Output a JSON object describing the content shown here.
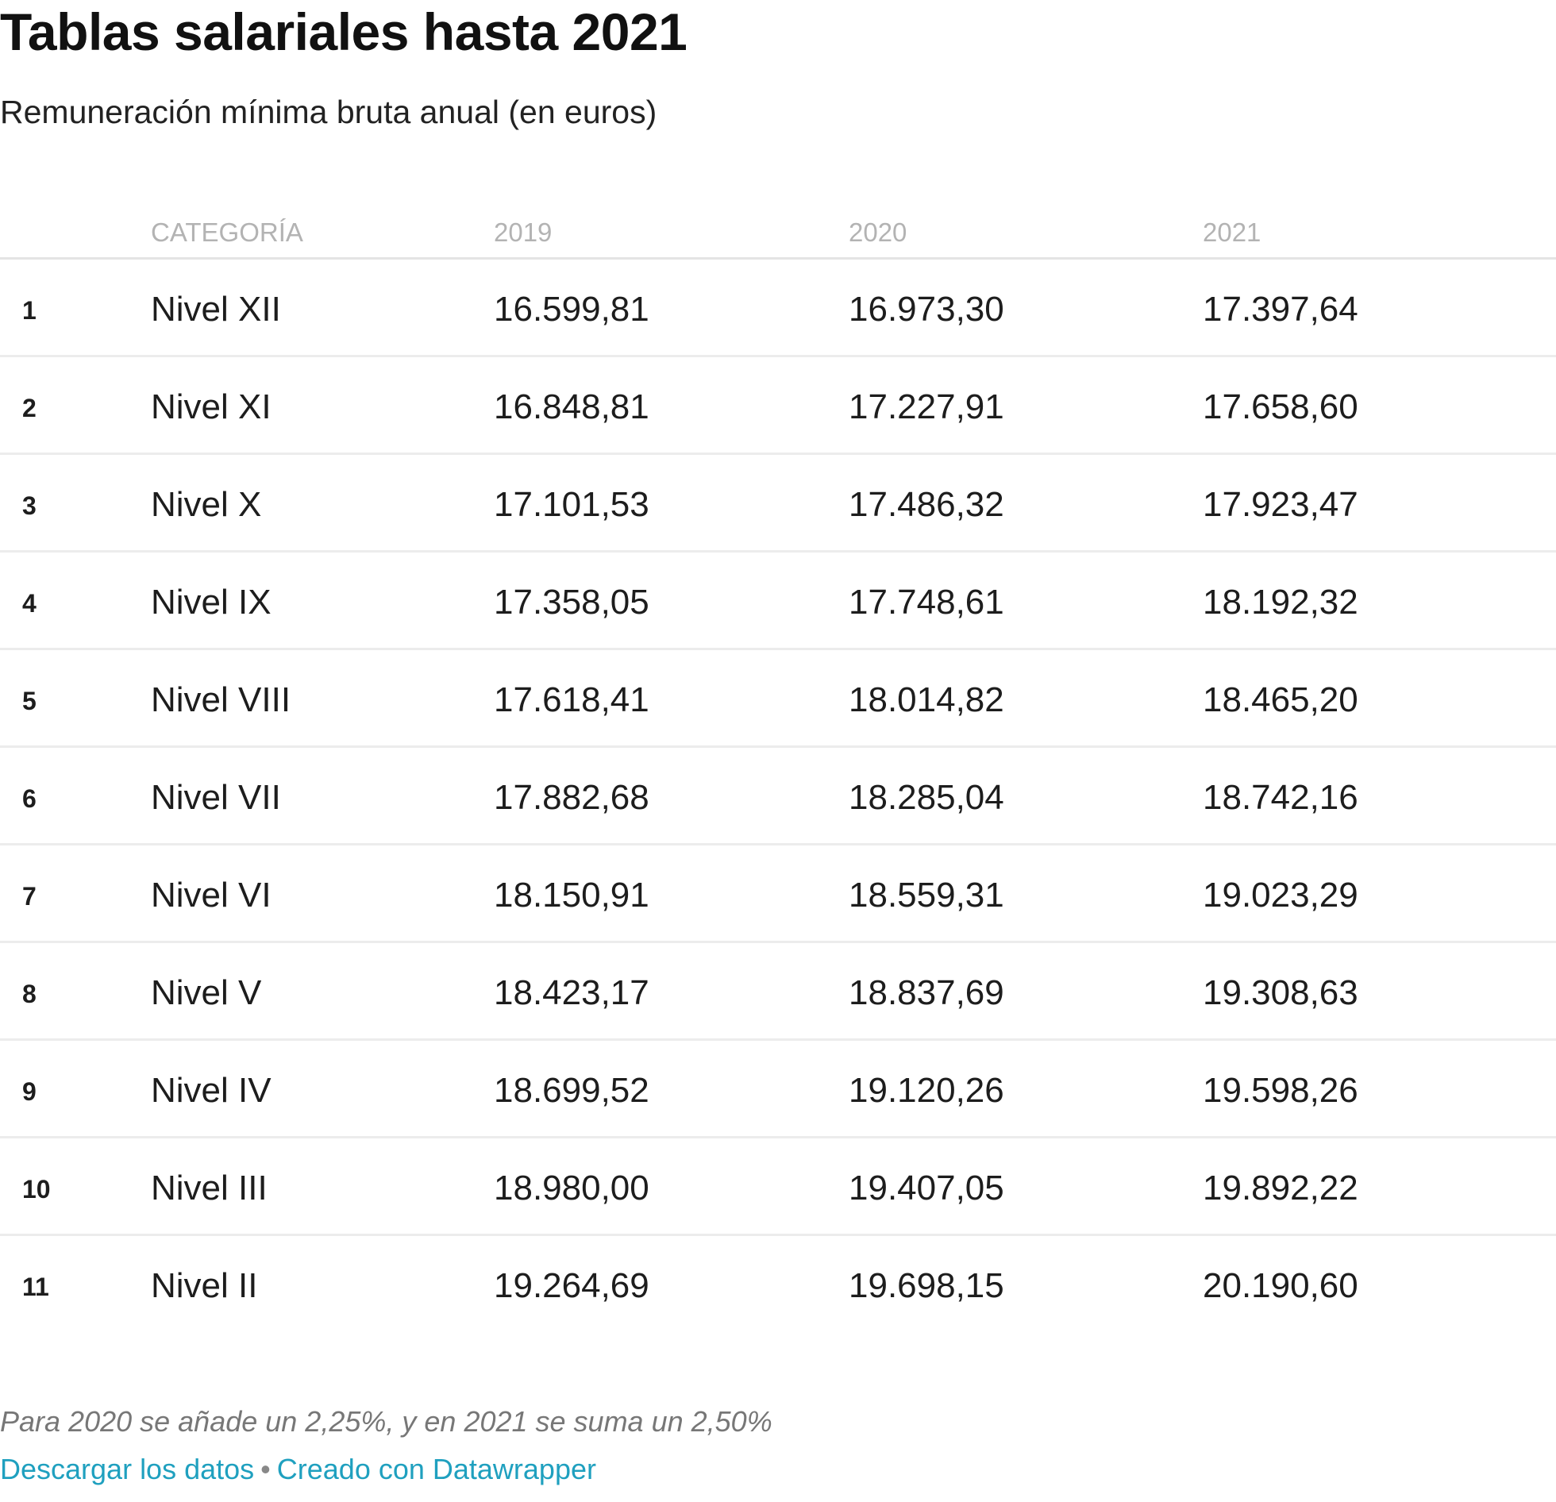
{
  "title": "Tablas salariales hasta 2021",
  "subtitle": "Remuneración mínima bruta anual (en euros)",
  "table": {
    "headers": [
      "",
      "CATEGORÍA",
      "2019",
      "2020",
      "2021"
    ],
    "rows": [
      [
        "1",
        "Nivel XII",
        "16.599,81",
        "16.973,30",
        "17.397,64"
      ],
      [
        "2",
        "Nivel XI",
        "16.848,81",
        "17.227,91",
        "17.658,60"
      ],
      [
        "3",
        "Nivel X",
        "17.101,53",
        "17.486,32",
        "17.923,47"
      ],
      [
        "4",
        "Nivel IX",
        "17.358,05",
        "17.748,61",
        "18.192,32"
      ],
      [
        "5",
        "Nivel VIII",
        "17.618,41",
        "18.014,82",
        "18.465,20"
      ],
      [
        "6",
        "Nivel VII",
        "17.882,68",
        "18.285,04",
        "18.742,16"
      ],
      [
        "7",
        "Nivel VI",
        "18.150,91",
        "18.559,31",
        "19.023,29"
      ],
      [
        "8",
        "Nivel V",
        "18.423,17",
        "18.837,69",
        "19.308,63"
      ],
      [
        "9",
        "Nivel IV",
        "18.699,52",
        "19.120,26",
        "19.598,26"
      ],
      [
        "10",
        "Nivel III",
        "18.980,00",
        "19.407,05",
        "19.892,22"
      ],
      [
        "11",
        "Nivel II",
        "19.264,69",
        "19.698,15",
        "20.190,60"
      ]
    ]
  },
  "footer": {
    "note": "Para 2020 se añade un 2,25%, y en 2021 se suma un 2,50%",
    "download_label": "Descargar los datos",
    "separator": "•",
    "credit_label": "Creado con Datawrapper"
  },
  "colors": {
    "link": "#1fa0bf",
    "header_text": "#b3b3b3",
    "note_text": "#777777"
  }
}
